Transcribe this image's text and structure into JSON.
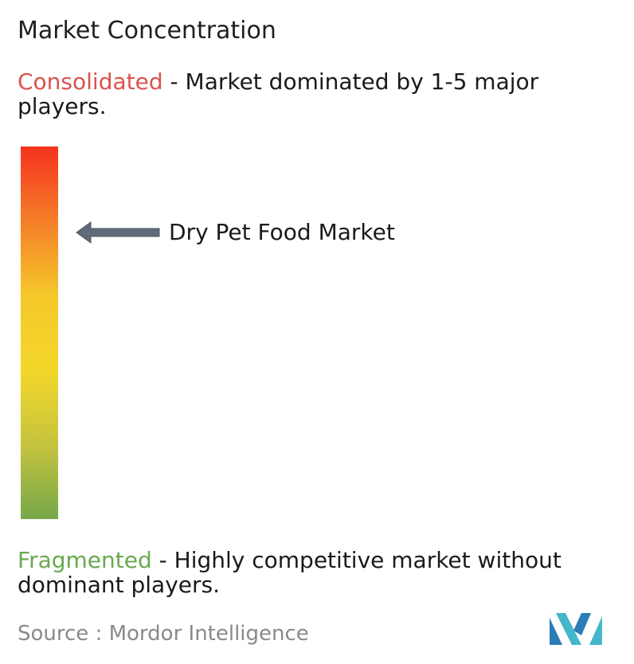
{
  "chart_data": {
    "type": "gradient-scale",
    "title": "Market Concentration",
    "scale_top": {
      "label": "Consolidated",
      "description": " - Market dominated by 1-5 major players.",
      "color": "#d9534f"
    },
    "scale_bottom": {
      "label": "Fragmented",
      "description": " - Highly competitive market without dominant players.",
      "color": "#6aa84f"
    },
    "gradient_colors": [
      "#f5321e",
      "#f57e28",
      "#f5c82a",
      "#f3d72a",
      "#c6c43e",
      "#76a84a"
    ],
    "marker": {
      "label": "Dry Pet Food Market",
      "position_from_top": 0.23,
      "arrow_color": "#5f6b78"
    }
  },
  "source": "Source :  Mordor Intelligence",
  "logo_colors": [
    "#2a7db6",
    "#43b7c9"
  ]
}
